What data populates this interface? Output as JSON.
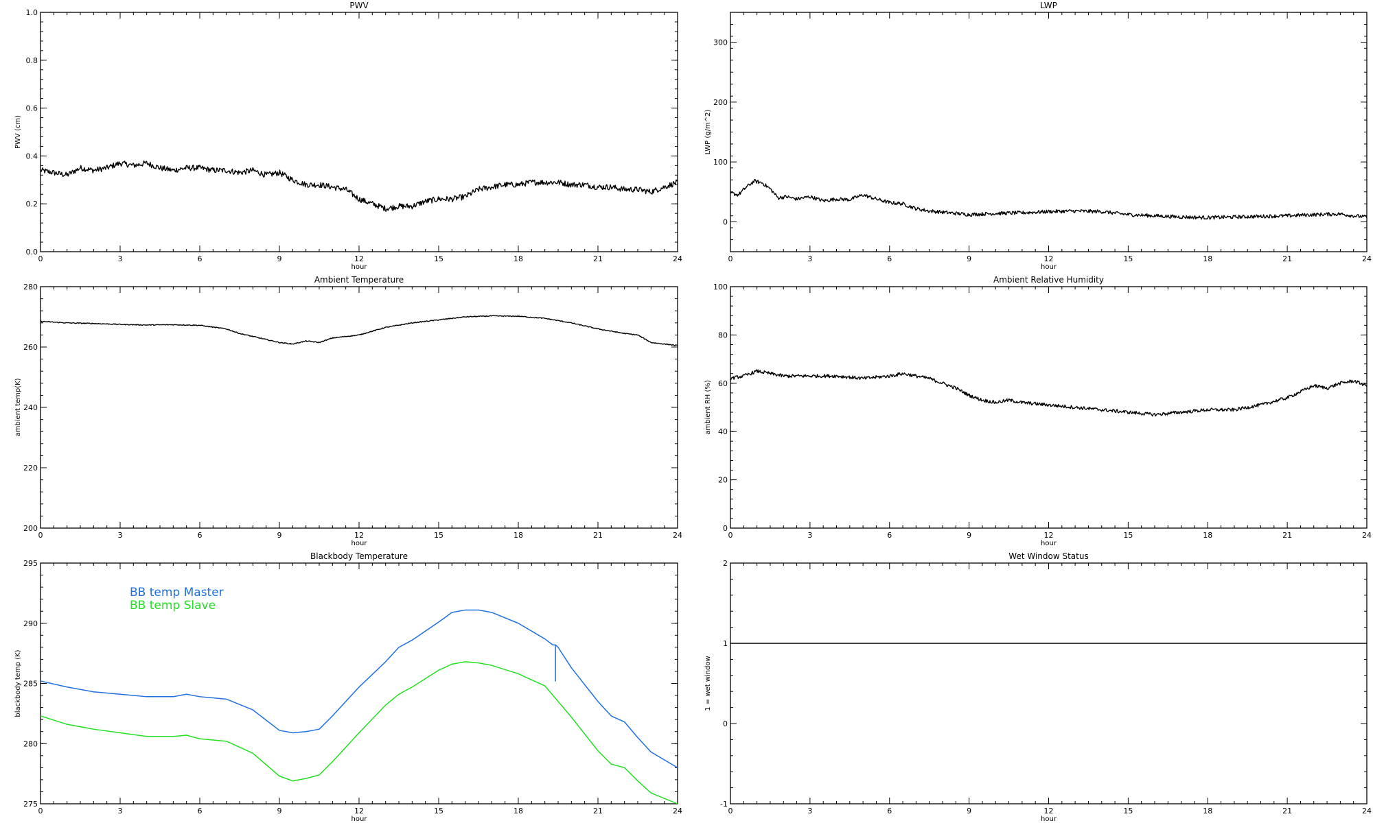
{
  "figure": {
    "background": "#ffffff",
    "axis_color": "#000000",
    "series_colors": {
      "default": "#000000",
      "master": "#1f6fe0",
      "slave": "#22e022"
    }
  },
  "chart_data": [
    {
      "id": "pwv",
      "type": "line",
      "title": "PWV",
      "xlabel": "hour",
      "ylabel": "PWV (cm)",
      "xlim": [
        0,
        24
      ],
      "ylim": [
        0.0,
        1.0
      ],
      "x_ticks": [
        "0",
        "3",
        "6",
        "9",
        "12",
        "15",
        "18",
        "21",
        "24"
      ],
      "y_ticks": [
        "0.0",
        "0.2",
        "0.4",
        "0.6",
        "0.8",
        "1.0"
      ],
      "y_tick_values": [
        0.0,
        0.2,
        0.4,
        0.6,
        0.8,
        1.0
      ],
      "noise": 0.012,
      "series": [
        {
          "x": [
            0,
            0.5,
            1,
            1.5,
            2,
            2.5,
            3,
            3.5,
            4,
            4.5,
            5,
            5.5,
            6,
            6.5,
            7,
            7.5,
            8,
            8.5,
            9,
            9.5,
            10,
            10.5,
            11,
            11.5,
            12,
            12.5,
            13,
            13.5,
            14,
            14.5,
            15,
            15.5,
            16,
            16.5,
            17,
            17.5,
            18,
            18.5,
            19,
            19.5,
            20,
            20.5,
            21,
            21.5,
            22,
            22.5,
            23,
            23.5,
            24
          ],
          "y": [
            0.34,
            0.33,
            0.32,
            0.35,
            0.34,
            0.35,
            0.37,
            0.36,
            0.37,
            0.35,
            0.34,
            0.35,
            0.35,
            0.34,
            0.34,
            0.33,
            0.34,
            0.32,
            0.33,
            0.3,
            0.28,
            0.28,
            0.27,
            0.26,
            0.22,
            0.2,
            0.18,
            0.19,
            0.19,
            0.21,
            0.22,
            0.22,
            0.23,
            0.26,
            0.27,
            0.28,
            0.28,
            0.29,
            0.29,
            0.29,
            0.28,
            0.28,
            0.27,
            0.27,
            0.26,
            0.26,
            0.25,
            0.27,
            0.29
          ]
        }
      ]
    },
    {
      "id": "lwp",
      "type": "line",
      "title": "LWP",
      "xlabel": "hour",
      "ylabel": "LWP (g/m^2)",
      "xlim": [
        0,
        24
      ],
      "ylim": [
        -50,
        350
      ],
      "x_ticks": [
        "0",
        "3",
        "6",
        "9",
        "12",
        "15",
        "18",
        "21",
        "24"
      ],
      "y_ticks": [
        "0",
        "100",
        "200",
        "300"
      ],
      "y_tick_values": [
        0,
        100,
        200,
        300
      ],
      "noise": 3,
      "series": [
        {
          "x": [
            0,
            0.3,
            0.6,
            0.9,
            1.2,
            1.5,
            1.8,
            2.1,
            2.5,
            3,
            3.5,
            4,
            4.5,
            5,
            5.5,
            6,
            6.5,
            7,
            7.5,
            8,
            8.5,
            9,
            9.5,
            10,
            11,
            12,
            13,
            14,
            15,
            16,
            17,
            18,
            19,
            20,
            21,
            22,
            23,
            23.5,
            24
          ],
          "y": [
            48,
            45,
            58,
            68,
            65,
            55,
            40,
            42,
            38,
            42,
            35,
            38,
            37,
            45,
            38,
            32,
            30,
            22,
            18,
            16,
            14,
            12,
            13,
            14,
            15,
            17,
            18,
            17,
            12,
            10,
            8,
            7,
            8,
            9,
            10,
            12,
            13,
            10,
            8
          ]
        }
      ]
    },
    {
      "id": "ambient_temp",
      "type": "line",
      "title": "Ambient Temperature",
      "xlabel": "hour",
      "ylabel": "ambient temp(K)",
      "xlim": [
        0,
        24
      ],
      "ylim": [
        200,
        280
      ],
      "x_ticks": [
        "0",
        "3",
        "6",
        "9",
        "12",
        "15",
        "18",
        "21",
        "24"
      ],
      "y_ticks": [
        "200",
        "220",
        "240",
        "260",
        "280"
      ],
      "y_tick_values": [
        200,
        220,
        240,
        260,
        280
      ],
      "noise": 0.15,
      "series": [
        {
          "x": [
            0,
            1,
            2,
            3,
            4,
            5,
            6,
            7,
            7.5,
            8,
            8.5,
            9,
            9.5,
            10,
            10.5,
            11,
            12,
            13,
            14,
            15,
            16,
            17,
            18,
            19,
            20,
            21,
            22,
            22.5,
            23,
            24
          ],
          "y": [
            268.5,
            268,
            267.8,
            267.5,
            267.3,
            267.4,
            267.2,
            266,
            264.5,
            263.5,
            262.5,
            261.5,
            261,
            262,
            261.5,
            263,
            264,
            266.5,
            268,
            269,
            270,
            270.3,
            270.2,
            269.5,
            268,
            266,
            264.5,
            264,
            261.5,
            260.5
          ]
        }
      ]
    },
    {
      "id": "ambient_rh",
      "type": "line",
      "title": "Ambient Relative Humidity",
      "xlabel": "hour",
      "ylabel": "ambient RH (%)",
      "xlim": [
        0,
        24
      ],
      "ylim": [
        0,
        100
      ],
      "x_ticks": [
        "0",
        "3",
        "6",
        "9",
        "12",
        "15",
        "18",
        "21",
        "24"
      ],
      "y_ticks": [
        "0",
        "20",
        "40",
        "60",
        "80",
        "100"
      ],
      "y_tick_values": [
        0,
        20,
        40,
        60,
        80,
        100
      ],
      "noise": 0.7,
      "series": [
        {
          "x": [
            0,
            0.5,
            1,
            1.5,
            2,
            3,
            4,
            5,
            6,
            6.5,
            7,
            7.5,
            8,
            8.5,
            9,
            9.5,
            10,
            10.5,
            11,
            12,
            13,
            14,
            15,
            16,
            17,
            18,
            19,
            20,
            21,
            22,
            22.5,
            23,
            23.5,
            24
          ],
          "y": [
            62,
            63,
            65,
            64,
            63,
            63,
            63,
            62,
            63,
            64,
            63,
            62,
            60,
            58,
            55,
            53,
            52,
            53,
            52,
            51,
            50,
            49,
            48,
            47,
            48,
            49,
            49,
            51,
            54,
            59,
            58,
            60,
            61,
            59
          ]
        }
      ]
    },
    {
      "id": "blackbody_temp",
      "type": "line",
      "title": "Blackbody Temperature",
      "xlabel": "hour",
      "ylabel": "blackbody temp (K)",
      "xlim": [
        0,
        24
      ],
      "ylim": [
        275,
        295
      ],
      "x_ticks": [
        "0",
        "3",
        "6",
        "9",
        "12",
        "15",
        "18",
        "21",
        "24"
      ],
      "y_ticks": [
        "275",
        "280",
        "285",
        "290",
        "295"
      ],
      "y_tick_values": [
        275,
        280,
        285,
        290,
        295
      ],
      "noise": 0,
      "legend": [
        "BB temp Master",
        "BB temp Slave"
      ],
      "series": [
        {
          "name": "BB temp Master",
          "color": "#1f6fe0",
          "x": [
            0,
            1,
            2,
            3,
            4,
            5,
            5.5,
            6,
            7,
            8,
            9,
            9.5,
            10,
            10.5,
            11,
            12,
            13,
            13.5,
            14,
            15,
            15.5,
            16,
            16.5,
            17,
            18,
            19,
            19.3,
            19.4,
            19.4,
            19.4,
            19.5,
            20,
            21,
            21.5,
            22,
            22.5,
            23,
            24
          ],
          "y": [
            285.2,
            284.7,
            284.3,
            284.1,
            283.9,
            283.9,
            284.1,
            283.9,
            283.7,
            282.8,
            281.1,
            280.9,
            281.0,
            281.2,
            282.3,
            284.7,
            286.8,
            288.0,
            288.6,
            290.1,
            290.9,
            291.1,
            291.1,
            290.9,
            290.0,
            288.7,
            288.2,
            288.2,
            285.2,
            288.2,
            288.0,
            286.3,
            283.5,
            282.3,
            281.8,
            280.5,
            279.3,
            278.0
          ]
        },
        {
          "name": "BB temp Slave",
          "color": "#22e022",
          "x": [
            0,
            1,
            2,
            3,
            4,
            5,
            5.5,
            6,
            7,
            8,
            9,
            9.5,
            10,
            10.5,
            11,
            12,
            13,
            13.5,
            14,
            15,
            15.5,
            16,
            16.5,
            17,
            18,
            19,
            20,
            21,
            21.5,
            22,
            22.5,
            23,
            24
          ],
          "y": [
            282.3,
            281.6,
            281.2,
            280.9,
            280.6,
            280.6,
            280.7,
            280.4,
            280.2,
            279.2,
            277.3,
            276.9,
            277.1,
            277.4,
            278.5,
            280.9,
            283.2,
            284.1,
            284.7,
            286.1,
            286.6,
            286.8,
            286.7,
            286.5,
            285.8,
            284.8,
            282.2,
            279.4,
            278.3,
            278.0,
            276.9,
            275.9,
            275.0
          ]
        }
      ]
    },
    {
      "id": "wet_window",
      "type": "line",
      "title": "Wet Window Status",
      "xlabel": "hour",
      "ylabel": "1 = wet window",
      "xlim": [
        0,
        24
      ],
      "ylim": [
        -1,
        2
      ],
      "x_ticks": [
        "0",
        "3",
        "6",
        "9",
        "12",
        "15",
        "18",
        "21",
        "24"
      ],
      "y_ticks": [
        "-1",
        "0",
        "1",
        "2"
      ],
      "y_tick_values": [
        -1,
        0,
        1,
        2
      ],
      "noise": 0,
      "series": [
        {
          "x": [
            0,
            24
          ],
          "y": [
            1,
            1
          ]
        }
      ]
    }
  ]
}
